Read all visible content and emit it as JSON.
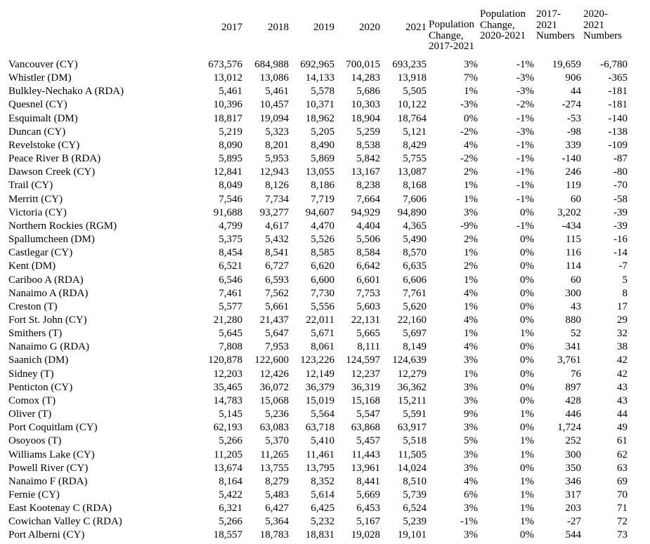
{
  "page": {
    "background_color": "#ffffff",
    "text_color": "#000000"
  },
  "chart_data": {
    "type": "table",
    "title": "",
    "columns": [
      "",
      "2017",
      "2018",
      "2019",
      "2020",
      "2021",
      "Population Change, 2017-2021",
      "Population Change, 2020-2021",
      "2017-2021 Numbers",
      "2020-2021 Numbers"
    ]
  },
  "table": {
    "headers": {
      "y2017": "2017",
      "y2018": "2018",
      "y2019": "2019",
      "y2020": "2020",
      "y2021": "2021",
      "pct_2017_2021": "Population\nChange,\n2017-2021",
      "pct_2020_2021": "Population\nChange,\n2020-2021",
      "num_2017_2021": "2017-\n2021\nNumbers",
      "num_2020_2021": "2020-\n2021\nNumbers"
    },
    "rows": [
      {
        "name": "Vancouver (CY)",
        "values": [
          "673,576",
          "684,988",
          "692,965",
          "700,015",
          "693,235",
          "3%",
          "-1%",
          "19,659",
          "-6,780"
        ]
      },
      {
        "name": "Whistler (DM)",
        "values": [
          "13,012",
          "13,086",
          "14,133",
          "14,283",
          "13,918",
          "7%",
          "-3%",
          "906",
          "-365"
        ]
      },
      {
        "name": "Bulkley-Nechako A (RDA)",
        "values": [
          "5,461",
          "5,461",
          "5,578",
          "5,686",
          "5,505",
          "1%",
          "-3%",
          "44",
          "-181"
        ]
      },
      {
        "name": "Quesnel (CY)",
        "values": [
          "10,396",
          "10,457",
          "10,371",
          "10,303",
          "10,122",
          "-3%",
          "-2%",
          "-274",
          "-181"
        ]
      },
      {
        "name": "Esquimalt (DM)",
        "values": [
          "18,817",
          "19,094",
          "18,962",
          "18,904",
          "18,764",
          "0%",
          "-1%",
          "-53",
          "-140"
        ]
      },
      {
        "name": "Duncan (CY)",
        "values": [
          "5,219",
          "5,323",
          "5,205",
          "5,259",
          "5,121",
          "-2%",
          "-3%",
          "-98",
          "-138"
        ]
      },
      {
        "name": "Revelstoke (CY)",
        "values": [
          "8,090",
          "8,201",
          "8,490",
          "8,538",
          "8,429",
          "4%",
          "-1%",
          "339",
          "-109"
        ]
      },
      {
        "name": "Peace River B (RDA)",
        "values": [
          "5,895",
          "5,953",
          "5,869",
          "5,842",
          "5,755",
          "-2%",
          "-1%",
          "-140",
          "-87"
        ]
      },
      {
        "name": "Dawson Creek (CY)",
        "values": [
          "12,841",
          "12,943",
          "13,055",
          "13,167",
          "13,087",
          "2%",
          "-1%",
          "246",
          "-80"
        ]
      },
      {
        "name": "Trail (CY)",
        "values": [
          "8,049",
          "8,126",
          "8,186",
          "8,238",
          "8,168",
          "1%",
          "-1%",
          "119",
          "-70"
        ]
      },
      {
        "name": "Merritt (CY)",
        "values": [
          "7,546",
          "7,734",
          "7,719",
          "7,664",
          "7,606",
          "1%",
          "-1%",
          "60",
          "-58"
        ]
      },
      {
        "name": "Victoria (CY)",
        "values": [
          "91,688",
          "93,277",
          "94,607",
          "94,929",
          "94,890",
          "3%",
          "0%",
          "3,202",
          "-39"
        ]
      },
      {
        "name": "Northern Rockies (RGM)",
        "values": [
          "4,799",
          "4,617",
          "4,470",
          "4,404",
          "4,365",
          "-9%",
          "-1%",
          "-434",
          "-39"
        ]
      },
      {
        "name": "Spallumcheen (DM)",
        "values": [
          "5,375",
          "5,432",
          "5,526",
          "5,506",
          "5,490",
          "2%",
          "0%",
          "115",
          "-16"
        ]
      },
      {
        "name": "Castlegar (CY)",
        "values": [
          "8,454",
          "8,541",
          "8,585",
          "8,584",
          "8,570",
          "1%",
          "0%",
          "116",
          "-14"
        ]
      },
      {
        "name": "Kent (DM)",
        "values": [
          "6,521",
          "6,727",
          "6,620",
          "6,642",
          "6,635",
          "2%",
          "0%",
          "114",
          "-7"
        ]
      },
      {
        "name": "Cariboo A (RDA)",
        "values": [
          "6,546",
          "6,593",
          "6,600",
          "6,601",
          "6,606",
          "1%",
          "0%",
          "60",
          "5"
        ]
      },
      {
        "name": "Nanaimo A (RDA)",
        "values": [
          "7,461",
          "7,562",
          "7,730",
          "7,753",
          "7,761",
          "4%",
          "0%",
          "300",
          "8"
        ]
      },
      {
        "name": "Creston (T)",
        "values": [
          "5,577",
          "5,661",
          "5,556",
          "5,603",
          "5,620",
          "1%",
          "0%",
          "43",
          "17"
        ]
      },
      {
        "name": "Fort St. John (CY)",
        "values": [
          "21,280",
          "21,437",
          "22,011",
          "22,131",
          "22,160",
          "4%",
          "0%",
          "880",
          "29"
        ]
      },
      {
        "name": "Smithers (T)",
        "values": [
          "5,645",
          "5,647",
          "5,671",
          "5,665",
          "5,697",
          "1%",
          "1%",
          "52",
          "32"
        ]
      },
      {
        "name": "Nanaimo G (RDA)",
        "values": [
          "7,808",
          "7,953",
          "8,061",
          "8,111",
          "8,149",
          "4%",
          "0%",
          "341",
          "38"
        ]
      },
      {
        "name": "Saanich (DM)",
        "values": [
          "120,878",
          "122,600",
          "123,226",
          "124,597",
          "124,639",
          "3%",
          "0%",
          "3,761",
          "42"
        ]
      },
      {
        "name": "Sidney (T)",
        "values": [
          "12,203",
          "12,426",
          "12,149",
          "12,237",
          "12,279",
          "1%",
          "0%",
          "76",
          "42"
        ]
      },
      {
        "name": "Penticton (CY)",
        "values": [
          "35,465",
          "36,072",
          "36,379",
          "36,319",
          "36,362",
          "3%",
          "0%",
          "897",
          "43"
        ]
      },
      {
        "name": "Comox (T)",
        "values": [
          "14,783",
          "15,068",
          "15,019",
          "15,168",
          "15,211",
          "3%",
          "0%",
          "428",
          "43"
        ]
      },
      {
        "name": "Oliver (T)",
        "values": [
          "5,145",
          "5,236",
          "5,564",
          "5,547",
          "5,591",
          "9%",
          "1%",
          "446",
          "44"
        ]
      },
      {
        "name": "Port Coquitlam (CY)",
        "values": [
          "62,193",
          "63,083",
          "63,718",
          "63,868",
          "63,917",
          "3%",
          "0%",
          "1,724",
          "49"
        ]
      },
      {
        "name": "Osoyoos (T)",
        "values": [
          "5,266",
          "5,370",
          "5,410",
          "5,457",
          "5,518",
          "5%",
          "1%",
          "252",
          "61"
        ]
      },
      {
        "name": "Williams Lake (CY)",
        "values": [
          "11,205",
          "11,265",
          "11,461",
          "11,443",
          "11,505",
          "3%",
          "1%",
          "300",
          "62"
        ]
      },
      {
        "name": "Powell River (CY)",
        "values": [
          "13,674",
          "13,755",
          "13,795",
          "13,961",
          "14,024",
          "3%",
          "0%",
          "350",
          "63"
        ]
      },
      {
        "name": "Nanaimo F (RDA)",
        "values": [
          "8,164",
          "8,279",
          "8,352",
          "8,441",
          "8,510",
          "4%",
          "1%",
          "346",
          "69"
        ]
      },
      {
        "name": "Fernie (CY)",
        "values": [
          "5,422",
          "5,483",
          "5,614",
          "5,669",
          "5,739",
          "6%",
          "1%",
          "317",
          "70"
        ]
      },
      {
        "name": "East Kootenay C (RDA)",
        "values": [
          "6,321",
          "6,427",
          "6,425",
          "6,453",
          "6,524",
          "3%",
          "1%",
          "203",
          "71"
        ]
      },
      {
        "name": "Cowichan Valley C (RDA)",
        "values": [
          "5,266",
          "5,364",
          "5,232",
          "5,167",
          "5,239",
          "-1%",
          "1%",
          "-27",
          "72"
        ]
      },
      {
        "name": "Port Alberni (CY)",
        "values": [
          "18,557",
          "18,783",
          "18,831",
          "19,028",
          "19,101",
          "3%",
          "0%",
          "544",
          "73"
        ]
      }
    ]
  }
}
